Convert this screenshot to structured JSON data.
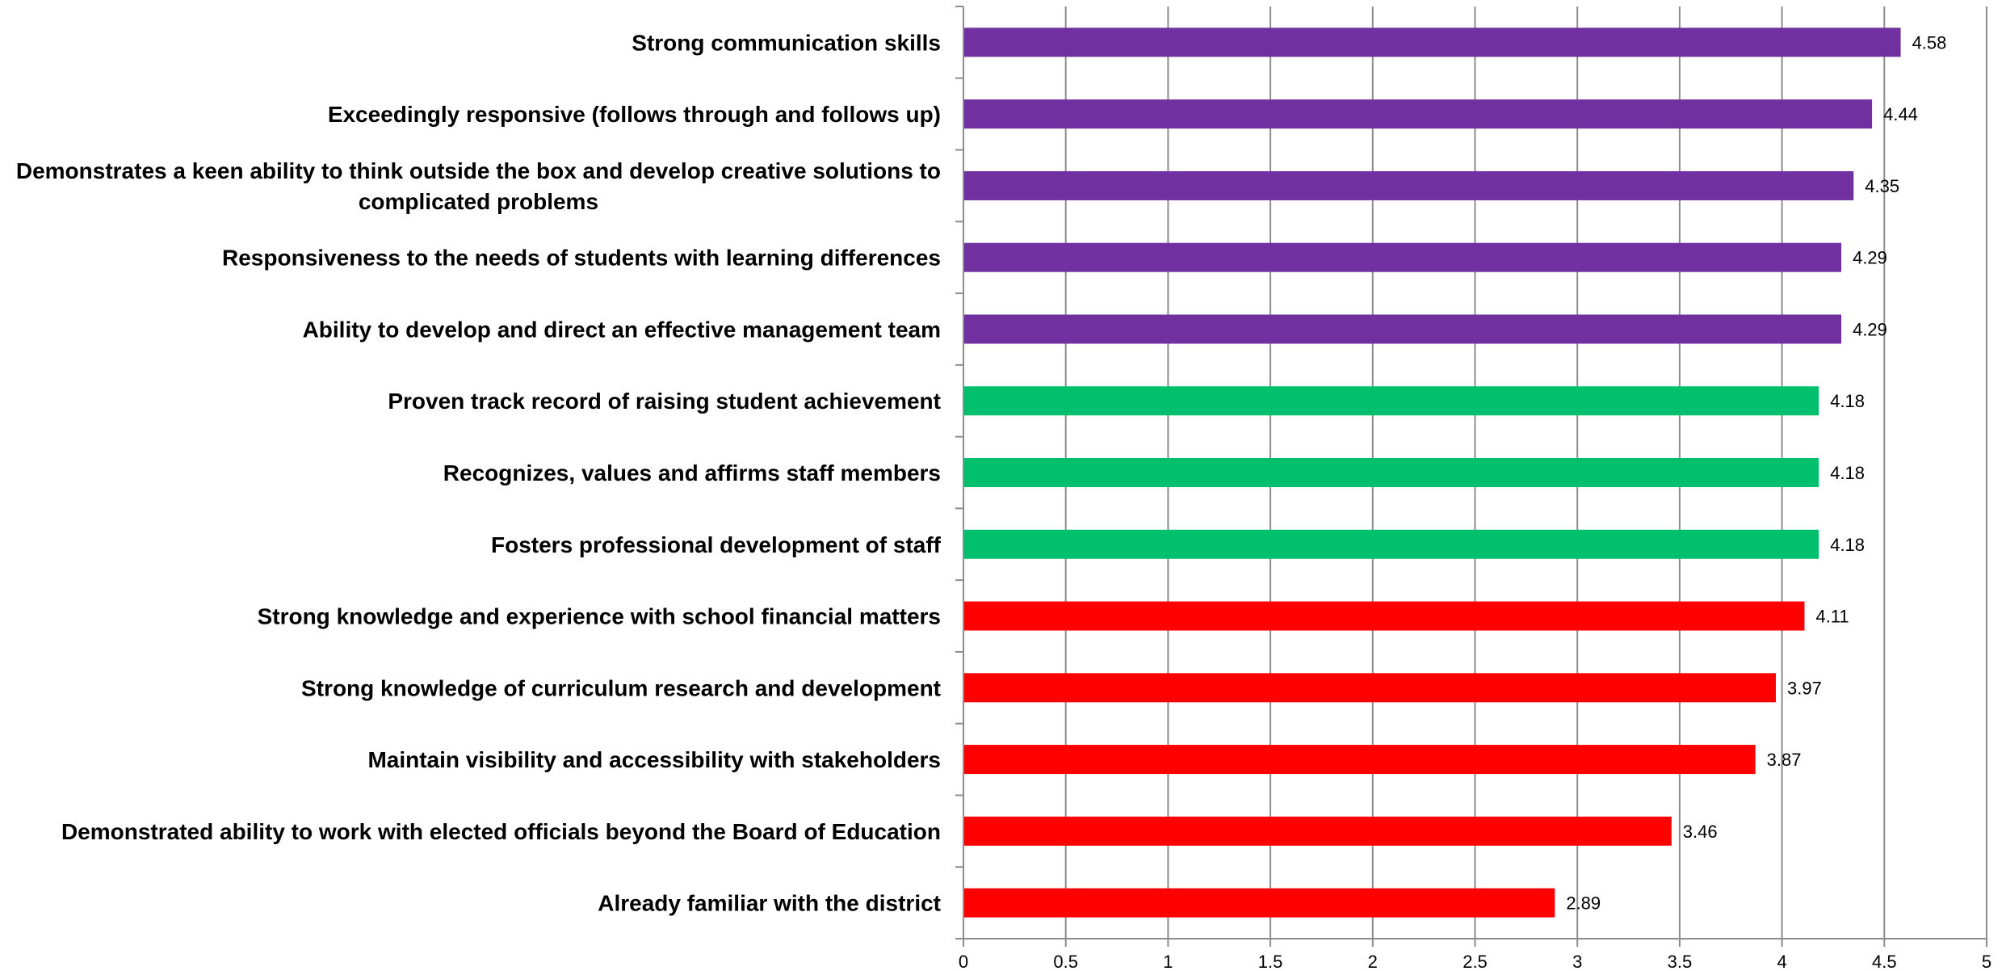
{
  "chart_data": {
    "type": "bar",
    "orientation": "horizontal",
    "title": "",
    "xlabel": "",
    "ylabel": "",
    "xlim": [
      0,
      5
    ],
    "x_ticks": [
      "0",
      "0.5",
      "1",
      "1.5",
      "2",
      "2.5",
      "3",
      "3.5",
      "4",
      "4.5",
      "5"
    ],
    "grid": "vertical gridlines on",
    "legend": "none",
    "categories": [
      "Strong communication skills",
      "Exceedingly responsive (follows through and follows up)",
      "Demonstrates a keen ability to think outside the box and develop creative solutions to complicated problems",
      "Responsiveness to the needs of students with learning differences",
      "Ability to develop and direct an effective management team",
      "Proven track record of raising student achievement",
      "Recognizes, values and affirms staff members",
      "Fosters professional development of staff",
      "Strong knowledge and experience with school financial matters",
      "Strong knowledge of curriculum research and development",
      "Maintain visibility and accessibility with stakeholders",
      "Demonstrated ability to work with elected officials beyond the Board of Education",
      "Already familiar with the district"
    ],
    "values": [
      4.58,
      4.44,
      4.35,
      4.29,
      4.29,
      4.18,
      4.18,
      4.18,
      4.11,
      3.97,
      3.87,
      3.46,
      2.89
    ],
    "value_labels": [
      "4.58",
      "4.44",
      "4.35",
      "4.29",
      "4.29",
      "4.18",
      "4.18",
      "4.18",
      "4.11",
      "3.97",
      "3.87",
      "3.46",
      "2.89"
    ],
    "bar_colors": [
      "#7030A0",
      "#7030A0",
      "#7030A0",
      "#7030A0",
      "#7030A0",
      "#00C06E",
      "#00C06E",
      "#00C06E",
      "#FF0000",
      "#FF0000",
      "#FF0000",
      "#FF0000",
      "#FF0000"
    ]
  }
}
